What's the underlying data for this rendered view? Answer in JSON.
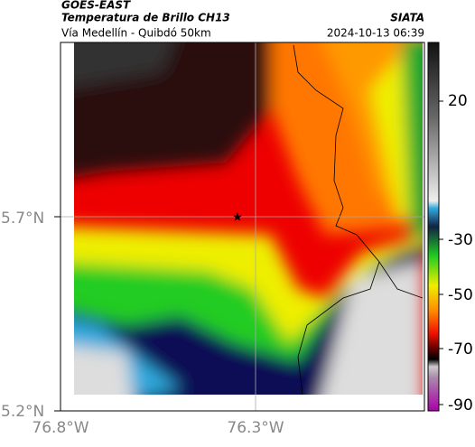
{
  "header": {
    "source": "GOES-EAST",
    "title": "Temperatura de Brillo CH13",
    "agency": "SIATA",
    "subtitle": "Vía Medellín - Quibdó 50km",
    "timestamp": "2024-10-13 06:39"
  },
  "axes": {
    "lat_labels": [
      "5.7°N",
      "5.2°N"
    ],
    "lon_labels": [
      "76.8°W",
      "76.3°W"
    ]
  },
  "colorbar": {
    "labels": [
      "20",
      "-30",
      "-50",
      "-70",
      "-90"
    ]
  }
}
